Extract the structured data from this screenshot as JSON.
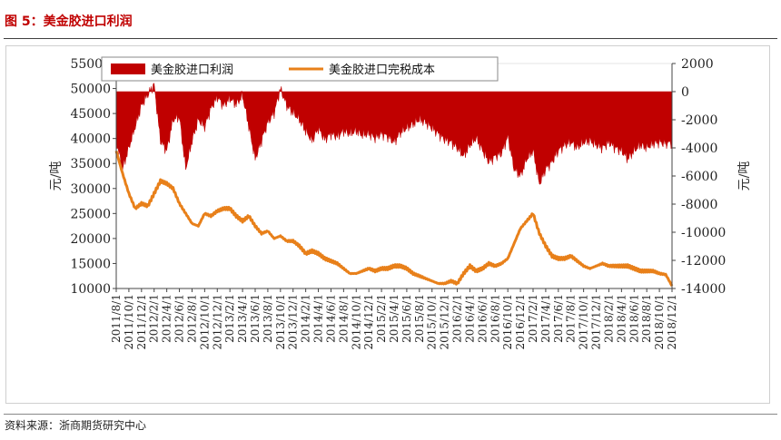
{
  "header": {
    "title": "图 5：美金胶进口利润"
  },
  "footer": {
    "source": "资料来源：浙商期货研究中心"
  },
  "chart_data": {
    "type": "area",
    "legend": {
      "placement": "top",
      "entries": [
        "美金胶进口利润",
        "美金胶进口完税成本"
      ]
    },
    "y_left": {
      "label": "元/吨",
      "range": [
        10000,
        55000
      ],
      "ticks": [
        "10000",
        "15000",
        "20000",
        "25000",
        "30000",
        "35000",
        "40000",
        "45000",
        "50000",
        "55000"
      ]
    },
    "y_right": {
      "label": "元/吨",
      "range": [
        -14000,
        2000
      ],
      "ticks": [
        "-14000",
        "-12000",
        "-10000",
        "-8000",
        "-6000",
        "-4000",
        "-2000",
        "0",
        "2000"
      ]
    },
    "x": {
      "range": [
        "2011/8/1",
        "2018/12/1"
      ],
      "tick_labels": [
        "2011/8/1",
        "2011/10/1",
        "2011/12/1",
        "2012/2/1",
        "2012/4/1",
        "2012/6/1",
        "2012/8/1",
        "2012/10/1",
        "2012/12/1",
        "2013/2/1",
        "2013/4/1",
        "2013/6/1",
        "2013/8/1",
        "2013/10/1",
        "2013/12/1",
        "2014/2/1",
        "2014/4/1",
        "2014/6/1",
        "2014/8/1",
        "2014/10/1",
        "2014/12/1",
        "2015/2/1",
        "2015/4/1",
        "2015/6/1",
        "2015/8/1",
        "2015/10/1",
        "2015/12/1",
        "2016/2/1",
        "2016/4/1",
        "2016/6/1",
        "2016/8/1",
        "2016/10/1",
        "2016/12/1",
        "2017/2/1",
        "2017/4/1",
        "2017/6/1",
        "2017/8/1",
        "2017/10/1",
        "2017/12/1",
        "2018/2/1",
        "2018/4/1",
        "2018/6/1",
        "2018/8/1",
        "2018/10/1",
        "2018/12/1"
      ]
    },
    "series": [
      {
        "name": "美金胶进口利润",
        "axis": "right",
        "color": "#c00000",
        "style": "area",
        "points": [
          [
            "2011/8/1",
            -3500
          ],
          [
            "2011/9/1",
            -5500
          ],
          [
            "2011/10/1",
            -4000
          ],
          [
            "2011/11/1",
            -2500
          ],
          [
            "2011/12/1",
            -1000
          ],
          [
            "2012/1/1",
            -200
          ],
          [
            "2012/2/1",
            500
          ],
          [
            "2012/3/1",
            -3500
          ],
          [
            "2012/4/1",
            -4200
          ],
          [
            "2012/5/1",
            -2000
          ],
          [
            "2012/6/1",
            -1800
          ],
          [
            "2012/7/1",
            -5500
          ],
          [
            "2012/8/1",
            -3500
          ],
          [
            "2012/9/1",
            -2000
          ],
          [
            "2012/10/1",
            -2500
          ],
          [
            "2012/11/1",
            -1200
          ],
          [
            "2012/12/1",
            -400
          ],
          [
            "2013/1/1",
            -1000
          ],
          [
            "2013/2/1",
            -500
          ],
          [
            "2013/3/1",
            -900
          ],
          [
            "2013/4/1",
            -300
          ],
          [
            "2013/5/1",
            -2500
          ],
          [
            "2013/6/1",
            -4800
          ],
          [
            "2013/7/1",
            -3500
          ],
          [
            "2013/8/1",
            -2200
          ],
          [
            "2013/9/1",
            -1500
          ],
          [
            "2013/10/1",
            200
          ],
          [
            "2013/11/1",
            -1000
          ],
          [
            "2013/12/1",
            -1500
          ],
          [
            "2014/1/1",
            -2000
          ],
          [
            "2014/2/1",
            -2800
          ],
          [
            "2014/3/1",
            -3500
          ],
          [
            "2014/4/1",
            -2600
          ],
          [
            "2014/5/1",
            -3400
          ],
          [
            "2014/6/1",
            -3000
          ],
          [
            "2014/7/1",
            -3200
          ],
          [
            "2014/8/1",
            -2800
          ],
          [
            "2014/9/1",
            -3000
          ],
          [
            "2014/10/1",
            -2800
          ],
          [
            "2014/11/1",
            -3100
          ],
          [
            "2014/12/1",
            -3000
          ],
          [
            "2015/1/1",
            -3300
          ],
          [
            "2015/2/1",
            -3000
          ],
          [
            "2015/3/1",
            -3200
          ],
          [
            "2015/4/1",
            -3600
          ],
          [
            "2015/5/1",
            -2900
          ],
          [
            "2015/6/1",
            -2600
          ],
          [
            "2015/7/1",
            -2300
          ],
          [
            "2015/8/1",
            -2000
          ],
          [
            "2015/9/1",
            -2200
          ],
          [
            "2015/10/1",
            -2600
          ],
          [
            "2015/11/1",
            -3000
          ],
          [
            "2015/12/1",
            -3400
          ],
          [
            "2016/1/1",
            -3600
          ],
          [
            "2016/2/1",
            -4000
          ],
          [
            "2016/3/1",
            -4600
          ],
          [
            "2016/4/1",
            -3800
          ],
          [
            "2016/5/1",
            -3300
          ],
          [
            "2016/6/1",
            -4200
          ],
          [
            "2016/7/1",
            -5000
          ],
          [
            "2016/8/1",
            -4600
          ],
          [
            "2016/9/1",
            -4400
          ],
          [
            "2016/10/1",
            -3200
          ],
          [
            "2016/11/1",
            -5500
          ],
          [
            "2016/12/1",
            -6000
          ],
          [
            "2017/1/1",
            -4800
          ],
          [
            "2017/2/1",
            -4200
          ],
          [
            "2017/3/1",
            -6600
          ],
          [
            "2017/4/1",
            -5500
          ],
          [
            "2017/5/1",
            -5000
          ],
          [
            "2017/6/1",
            -4200
          ],
          [
            "2017/7/1",
            -3800
          ],
          [
            "2017/8/1",
            -3600
          ],
          [
            "2017/9/1",
            -4000
          ],
          [
            "2017/10/1",
            -3600
          ],
          [
            "2017/11/1",
            -3500
          ],
          [
            "2017/12/1",
            -3800
          ],
          [
            "2018/1/1",
            -4000
          ],
          [
            "2018/2/1",
            -3600
          ],
          [
            "2018/3/1",
            -4000
          ],
          [
            "2018/4/1",
            -4200
          ],
          [
            "2018/5/1",
            -4800
          ],
          [
            "2018/6/1",
            -4200
          ],
          [
            "2018/7/1",
            -3800
          ],
          [
            "2018/8/1",
            -4000
          ],
          [
            "2018/9/1",
            -3700
          ],
          [
            "2018/10/1",
            -3600
          ],
          [
            "2018/11/1",
            -3700
          ],
          [
            "2018/12/1",
            -3600
          ]
        ]
      },
      {
        "name": "美金胶进口完税成本",
        "axis": "left",
        "color": "#e8801a",
        "style": "line",
        "points": [
          [
            "2011/8/1",
            37500
          ],
          [
            "2011/9/1",
            33000
          ],
          [
            "2011/10/1",
            29000
          ],
          [
            "2011/11/1",
            26000
          ],
          [
            "2011/12/1",
            27000
          ],
          [
            "2012/1/1",
            26500
          ],
          [
            "2012/2/1",
            29000
          ],
          [
            "2012/3/1",
            31500
          ],
          [
            "2012/4/1",
            31000
          ],
          [
            "2012/5/1",
            30000
          ],
          [
            "2012/6/1",
            27000
          ],
          [
            "2012/7/1",
            25000
          ],
          [
            "2012/8/1",
            23000
          ],
          [
            "2012/9/1",
            22500
          ],
          [
            "2012/10/1",
            25000
          ],
          [
            "2012/11/1",
            24500
          ],
          [
            "2012/12/1",
            25500
          ],
          [
            "2013/1/1",
            26000
          ],
          [
            "2013/2/1",
            26000
          ],
          [
            "2013/3/1",
            24500
          ],
          [
            "2013/4/1",
            23500
          ],
          [
            "2013/5/1",
            24500
          ],
          [
            "2013/6/1",
            22500
          ],
          [
            "2013/7/1",
            21000
          ],
          [
            "2013/8/1",
            21500
          ],
          [
            "2013/9/1",
            20000
          ],
          [
            "2013/10/1",
            20500
          ],
          [
            "2013/11/1",
            19500
          ],
          [
            "2013/12/1",
            19500
          ],
          [
            "2014/1/1",
            18500
          ],
          [
            "2014/2/1",
            17000
          ],
          [
            "2014/3/1",
            17500
          ],
          [
            "2014/4/1",
            17000
          ],
          [
            "2014/5/1",
            16000
          ],
          [
            "2014/6/1",
            15500
          ],
          [
            "2014/7/1",
            15000
          ],
          [
            "2014/8/1",
            14000
          ],
          [
            "2014/9/1",
            13000
          ],
          [
            "2014/10/1",
            13000
          ],
          [
            "2014/11/1",
            13500
          ],
          [
            "2014/12/1",
            14000
          ],
          [
            "2015/1/1",
            13500
          ],
          [
            "2015/2/1",
            14000
          ],
          [
            "2015/3/1",
            14000
          ],
          [
            "2015/4/1",
            14500
          ],
          [
            "2015/5/1",
            14500
          ],
          [
            "2015/6/1",
            14000
          ],
          [
            "2015/7/1",
            13000
          ],
          [
            "2015/8/1",
            12500
          ],
          [
            "2015/9/1",
            12000
          ],
          [
            "2015/10/1",
            11500
          ],
          [
            "2015/11/1",
            11000
          ],
          [
            "2015/12/1",
            11000
          ],
          [
            "2016/1/1",
            11500
          ],
          [
            "2016/2/1",
            11000
          ],
          [
            "2016/3/1",
            13000
          ],
          [
            "2016/4/1",
            14500
          ],
          [
            "2016/5/1",
            13500
          ],
          [
            "2016/6/1",
            14000
          ],
          [
            "2016/7/1",
            15000
          ],
          [
            "2016/8/1",
            14500
          ],
          [
            "2016/9/1",
            15000
          ],
          [
            "2016/10/1",
            16000
          ],
          [
            "2016/11/1",
            19000
          ],
          [
            "2016/12/1",
            22000
          ],
          [
            "2017/1/1",
            23500
          ],
          [
            "2017/2/1",
            25000
          ],
          [
            "2017/3/1",
            21000
          ],
          [
            "2017/4/1",
            18500
          ],
          [
            "2017/5/1",
            16500
          ],
          [
            "2017/6/1",
            16000
          ],
          [
            "2017/7/1",
            16000
          ],
          [
            "2017/8/1",
            16500
          ],
          [
            "2017/9/1",
            15500
          ],
          [
            "2017/10/1",
            14500
          ],
          [
            "2017/11/1",
            14000
          ],
          [
            "2017/12/1",
            14500
          ],
          [
            "2018/1/1",
            15000
          ],
          [
            "2018/2/1",
            14500
          ],
          [
            "2018/3/1",
            14500
          ],
          [
            "2018/4/1",
            14500
          ],
          [
            "2018/5/1",
            14500
          ],
          [
            "2018/6/1",
            14000
          ],
          [
            "2018/7/1",
            13500
          ],
          [
            "2018/8/1",
            13500
          ],
          [
            "2018/9/1",
            13500
          ],
          [
            "2018/10/1",
            13000
          ],
          [
            "2018/11/1",
            12800
          ],
          [
            "2018/12/1",
            10500
          ]
        ]
      }
    ]
  }
}
